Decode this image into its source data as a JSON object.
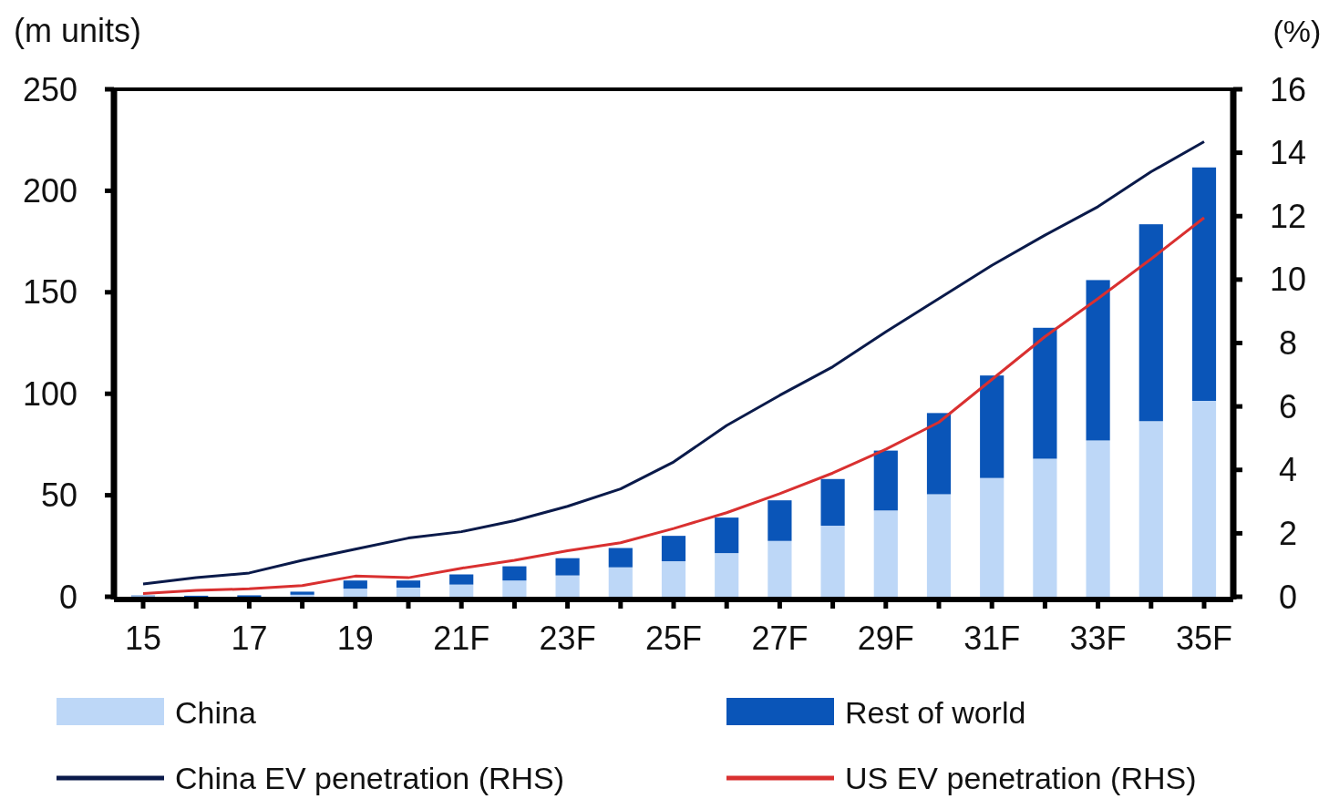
{
  "chart_data": {
    "type": "bar",
    "stacked": true,
    "categories": [
      "15",
      null,
      "17",
      null,
      "19",
      null,
      "21F",
      null,
      "23F",
      null,
      "25F",
      null,
      "27F",
      null,
      "29F",
      null,
      "31F",
      null,
      "33F",
      null,
      "35F"
    ],
    "series": [
      {
        "name": "China",
        "color": "#bdd7f7",
        "values": [
          0.3,
          null,
          null,
          1,
          4,
          4.5,
          6,
          8,
          10.5,
          14.5,
          17.5,
          21.5,
          27.5,
          35,
          42.5,
          50.5,
          58.5,
          68,
          77,
          86.5,
          96.5
        ]
      },
      {
        "name": "Rest of world",
        "color": "#0a55b8",
        "values": [
          0.3,
          0.5,
          0.7,
          1.5,
          4,
          3.5,
          5,
          7,
          8.5,
          9.5,
          12.5,
          17.5,
          20,
          23,
          29.5,
          40,
          50.5,
          64.5,
          79,
          97,
          115
        ]
      },
      {
        "name": "China EV penetration (RHS)",
        "type": "line",
        "axis": "y2",
        "color": "#0a1a4a",
        "values": [
          0.4,
          0.6,
          0.75,
          1.15,
          1.5,
          1.85,
          2.05,
          2.4,
          2.85,
          3.4,
          4.25,
          5.4,
          6.35,
          7.25,
          8.35,
          9.4,
          10.45,
          11.4,
          12.3,
          13.4,
          14.35
        ]
      },
      {
        "name": "US EV penetration (RHS)",
        "type": "line",
        "axis": "y2",
        "color": "#d93030",
        "values": [
          0.1,
          0.2,
          0.25,
          0.35,
          0.65,
          0.6,
          0.9,
          1.15,
          1.45,
          1.7,
          2.15,
          2.65,
          3.25,
          3.9,
          4.65,
          5.5,
          6.85,
          8.2,
          9.4,
          10.65,
          11.95
        ]
      }
    ],
    "ylabel": "(m units)",
    "y2label": "(%)",
    "ylim": [
      0,
      250
    ],
    "yticks": [
      0,
      50,
      100,
      150,
      200,
      250
    ],
    "y2lim": [
      0,
      16
    ],
    "y2ticks": [
      0,
      2,
      4,
      6,
      8,
      10,
      12,
      14,
      16
    ],
    "legend": "bottom",
    "grid": false
  }
}
